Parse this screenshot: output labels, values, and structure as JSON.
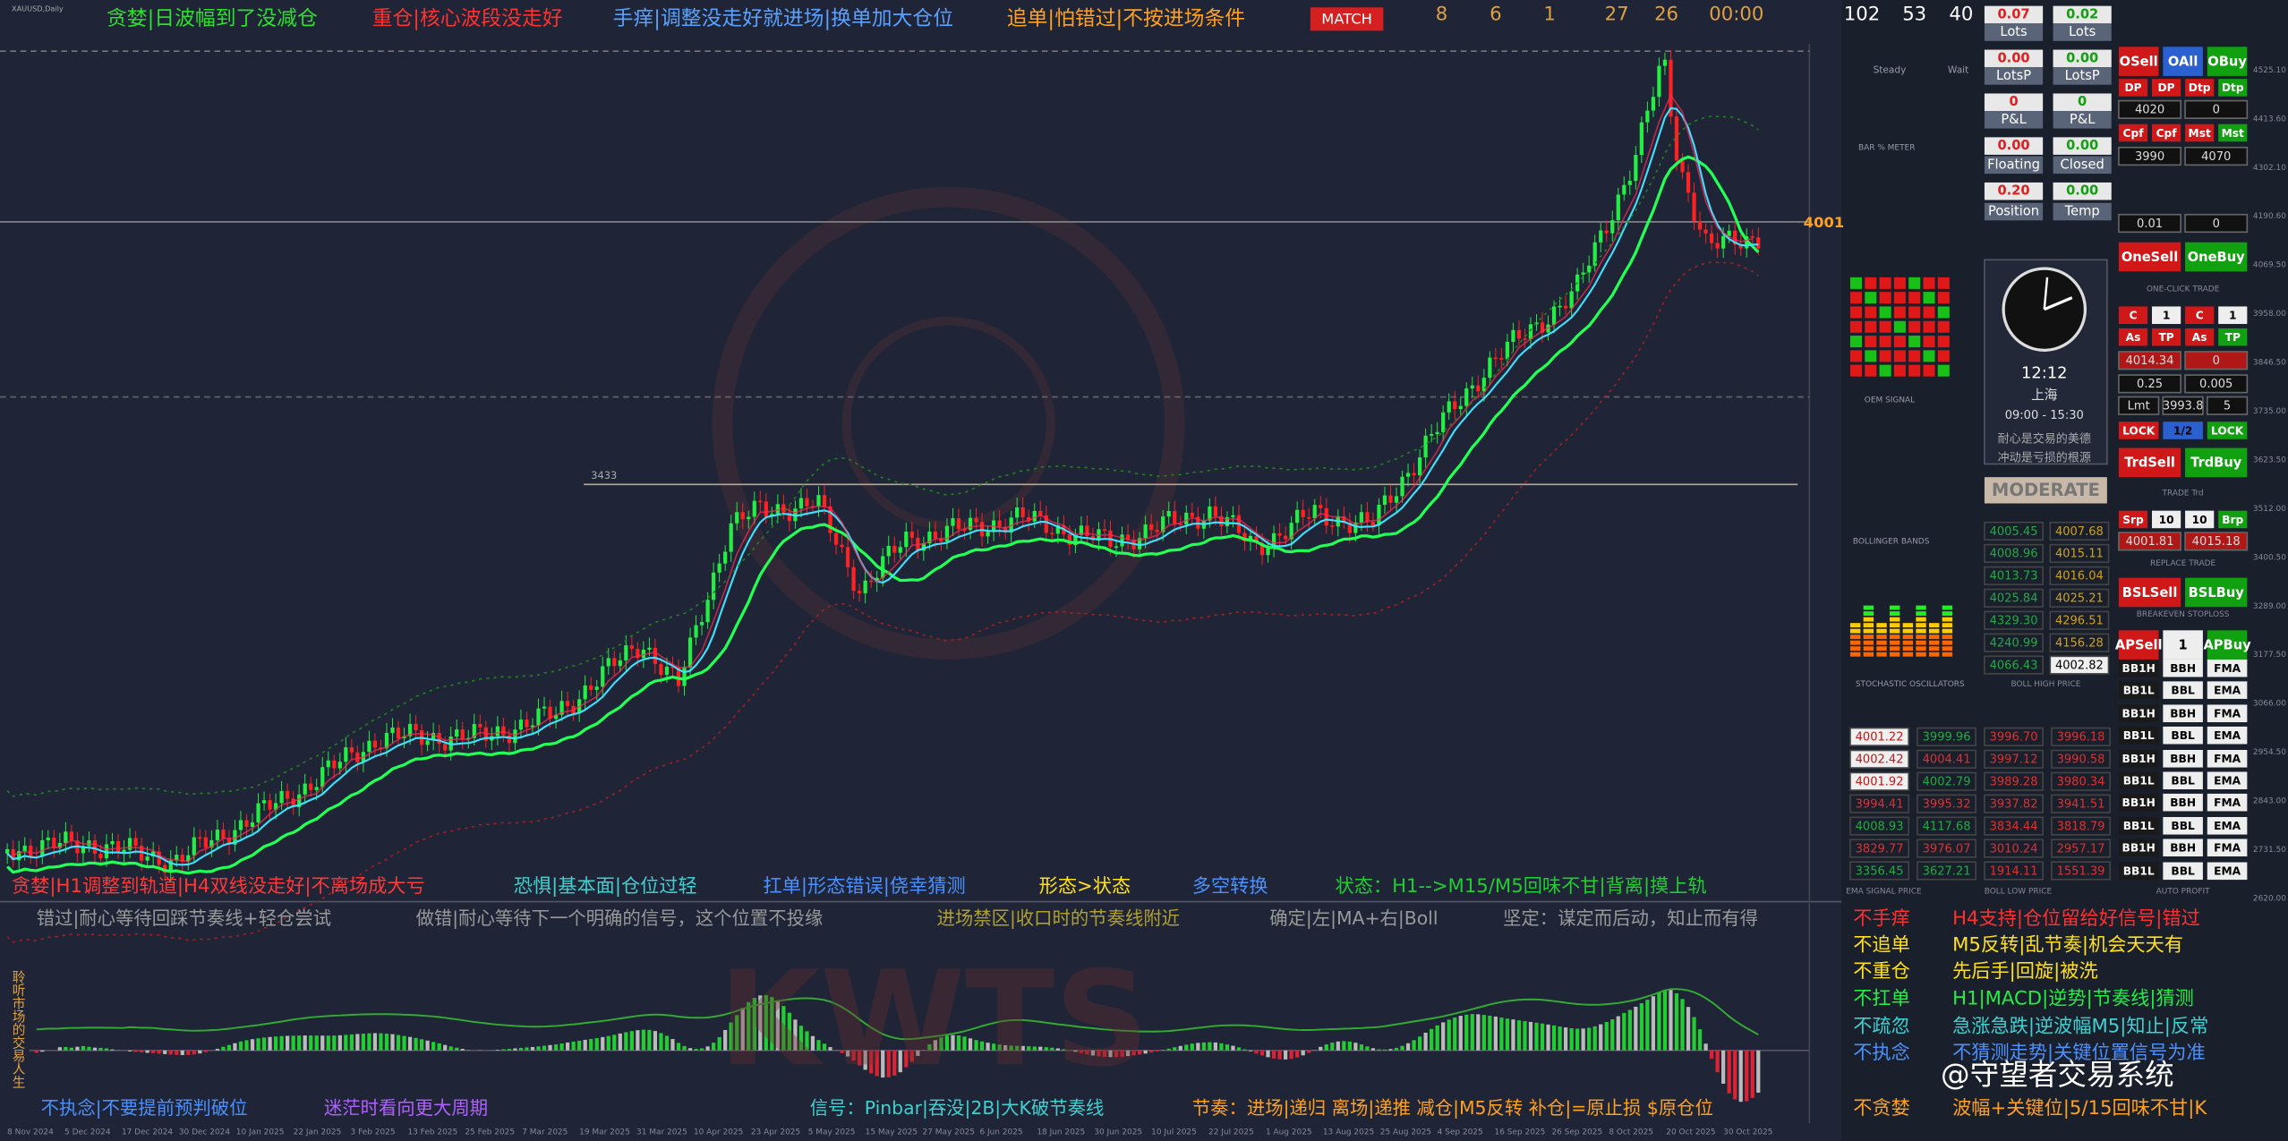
{
  "header": {
    "symbol": "XAUUSD,Daily",
    "slogans": [
      "贪婪|日波幅到了没减仓",
      "重仓|核心波段没走好",
      "手痒|调整没走好就进场|换单加大仓位",
      "追单|怕错过|不按进场条件"
    ],
    "button": "MATCH",
    "counters": [
      "8",
      "6",
      "1",
      "27",
      "26",
      "00:00"
    ],
    "stats": [
      "102",
      "53",
      "40"
    ]
  },
  "chart": {
    "price_label": "4001",
    "level_label": "3433",
    "x_axis": [
      "8 Nov 2024",
      "5 Dec 2024",
      "17 Dec 2024",
      "30 Dec 2024",
      "10 Jan 2025",
      "22 Jan 2025",
      "3 Feb 2025",
      "13 Feb 2025",
      "25 Feb 2025",
      "7 Mar 2025",
      "19 Mar 2025",
      "31 Mar 2025",
      "10 Apr 2025",
      "23 Apr 2025",
      "5 May 2025",
      "15 May 2025",
      "27 May 2025",
      "6 Jun 2025",
      "18 Jun 2025",
      "30 Jun 2025",
      "10 Jul 2025",
      "22 Jul 2025",
      "1 Aug 2025",
      "13 Aug 2025",
      "25 Aug 2025",
      "4 Sep 2025",
      "16 Sep 2025",
      "26 Sep 2025",
      "8 Oct 2025",
      "20 Oct 2025",
      "30 Oct 2025"
    ],
    "y_axis": [
      "4525.10",
      "4413.60",
      "4302.10",
      "4190.60",
      "4069.50",
      "3958.00",
      "3846.50",
      "3735.00",
      "3623.50",
      "3512.00",
      "3400.50",
      "3289.00",
      "3177.50",
      "3066.00",
      "2954.50",
      "2843.00",
      "2731.50",
      "2620.00"
    ],
    "notes": [
      "贪婪|H1调整到轨道|H4双线没走好|不离场成大亏",
      "恐惧|基本面|仓位过轻",
      "扛单|形态错误|侥幸猜测",
      "形态>状态",
      "多空转换",
      "状态：H1-->M15/M5回味不甘|背离|摸上轨"
    ]
  },
  "indicator": {
    "notes": [
      "错过|耐心等待回踩节奏线+轻仓尝试",
      "做错|耐心等待下一个明确的信号，这个位置不投缘",
      "进场禁区|收口时的节奏线附近",
      "确定|左|MA+右|Boll",
      "坚定：谋定而后动，知止而有得"
    ],
    "footer": [
      "不执念|不要提前预判破位",
      "迷茫时看向更大周期",
      "信号：Pinbar|吞没|2B|大K破节奏线",
      "节奏：进场|递归 离场|递推 减仓|M5反转 补仓|=原止损 $原仓位"
    ],
    "side_text": "聆听市场的交易人生",
    "letters": "KWTS"
  },
  "rules": {
    "labels": [
      "不手痒",
      "不追单",
      "不重仓",
      "不扛单",
      "不疏忽",
      "不执念",
      "不贪婪"
    ],
    "details": [
      "H4支持|仓位留给好信号|错过",
      "M5反转|乱节奏|机会天天有",
      "先后手|回旋|被洗",
      "H1|MACD|逆势|节奏线|猜测",
      "急涨急跌|逆波幅M5|知止|反常",
      "不猜测走势|关键位置信号为准",
      "波幅+关键位|5/15回味不甘|K"
    ]
  },
  "watermark": "@守望者交易系统",
  "panel": {
    "meters": [
      "Steady",
      "Wait",
      "BAR % METER",
      "OEM SIGNAL",
      "BOLLINGER BANDS",
      "STOCHASTIC OSCILLATORS"
    ],
    "lots": [
      [
        "0.07",
        "0.02"
      ],
      [
        "Lots",
        "Lots"
      ],
      [
        "0.00",
        "0.00"
      ],
      [
        "LotsP",
        "LotsP"
      ],
      [
        "0",
        "0"
      ],
      [
        "P&L",
        "P&L"
      ],
      [
        "0.00",
        "0.00"
      ],
      [
        "Floating",
        "Closed"
      ],
      [
        "0.20",
        "0.00"
      ],
      [
        "Position",
        "Temp"
      ]
    ],
    "clock": {
      "time": "12:12",
      "city": "上海",
      "session": "09:00 - 15:30",
      "motto": [
        "耐心是交易的美德",
        "冲动是亏损的根源"
      ],
      "mode": "MODERATE"
    },
    "buttons": [
      [
        "OSell",
        "OAll",
        "OBuy"
      ],
      [
        "DP",
        "DP",
        "Dtp",
        "Dtp"
      ],
      [
        "Cpf",
        "Cpf",
        "Mst",
        "Mst"
      ],
      [
        "OneSell",
        "OneBuy"
      ],
      [
        "C",
        "1",
        "C",
        "1"
      ],
      [
        "As",
        "TP",
        "As",
        "TP"
      ],
      [
        "LOCK",
        "1/2",
        "LOCK"
      ],
      [
        "TrdSell",
        "TrdBuy"
      ],
      [
        "Srp",
        "10",
        "10",
        "Brp"
      ],
      [
        "BSLSell",
        "BSLBuy"
      ],
      [
        "APSell",
        "1",
        "APBuy"
      ],
      [
        "BB1H",
        "BBH",
        "FMA"
      ],
      [
        "BB1L",
        "BBL",
        "EMA"
      ],
      [
        "BB1H",
        "BBH",
        "FMA"
      ],
      [
        "BB1L",
        "BBL",
        "EMA"
      ],
      [
        "BB1H",
        "BBH",
        "FMA"
      ],
      [
        "BB1L",
        "BBL",
        "EMA"
      ],
      [
        "BB1H",
        "BBH",
        "FMA"
      ],
      [
        "BB1L",
        "BBL",
        "EMA"
      ],
      [
        "BB1H",
        "BBH",
        "FMA"
      ],
      [
        "BB1L",
        "BBL",
        "EMA"
      ]
    ],
    "inputs": [
      [
        "4020",
        "0"
      ],
      [
        "3990",
        "4070"
      ],
      [
        "0.01",
        "0"
      ],
      [
        "4014.34",
        "0"
      ],
      [
        "0.25",
        "0.005"
      ],
      [
        "Lmt",
        "3993.8",
        "5"
      ],
      [
        "4001.81",
        "4015.18"
      ]
    ],
    "sections": [
      "ONE-CLICK TRADE",
      "TRADE Trd",
      "REPLACE TRADE",
      "BREAKEVEN STOPLOSS",
      "AUTO PROFIT"
    ],
    "boll_high": [
      [
        "4005.45",
        "4007.68"
      ],
      [
        "4008.96",
        "4015.11"
      ],
      [
        "4013.73",
        "4016.04"
      ],
      [
        "4025.84",
        "4025.21"
      ],
      [
        "4329.30",
        "4296.51"
      ],
      [
        "4240.99",
        "4156.28"
      ],
      [
        "4066.43",
        "4002.82"
      ]
    ],
    "boll_high_label": "BOLL HIGH PRICE",
    "price_grid": [
      [
        "4001.22",
        "3999.96",
        "3996.70",
        "3996.18"
      ],
      [
        "4002.42",
        "4004.41",
        "3997.12",
        "3990.58"
      ],
      [
        "4001.92",
        "4002.79",
        "3989.28",
        "3980.34"
      ],
      [
        "3994.41",
        "3995.32",
        "3937.82",
        "3941.51"
      ],
      [
        "4008.93",
        "4117.68",
        "3834.44",
        "3818.79"
      ],
      [
        "3829.77",
        "3976.07",
        "3010.24",
        "2957.17"
      ],
      [
        "3356.45",
        "3627.21",
        "1914.11",
        "1551.39"
      ]
    ],
    "grid_labels": [
      "EMA SIGNAL PRICE",
      "BOLL LOW PRICE"
    ]
  }
}
